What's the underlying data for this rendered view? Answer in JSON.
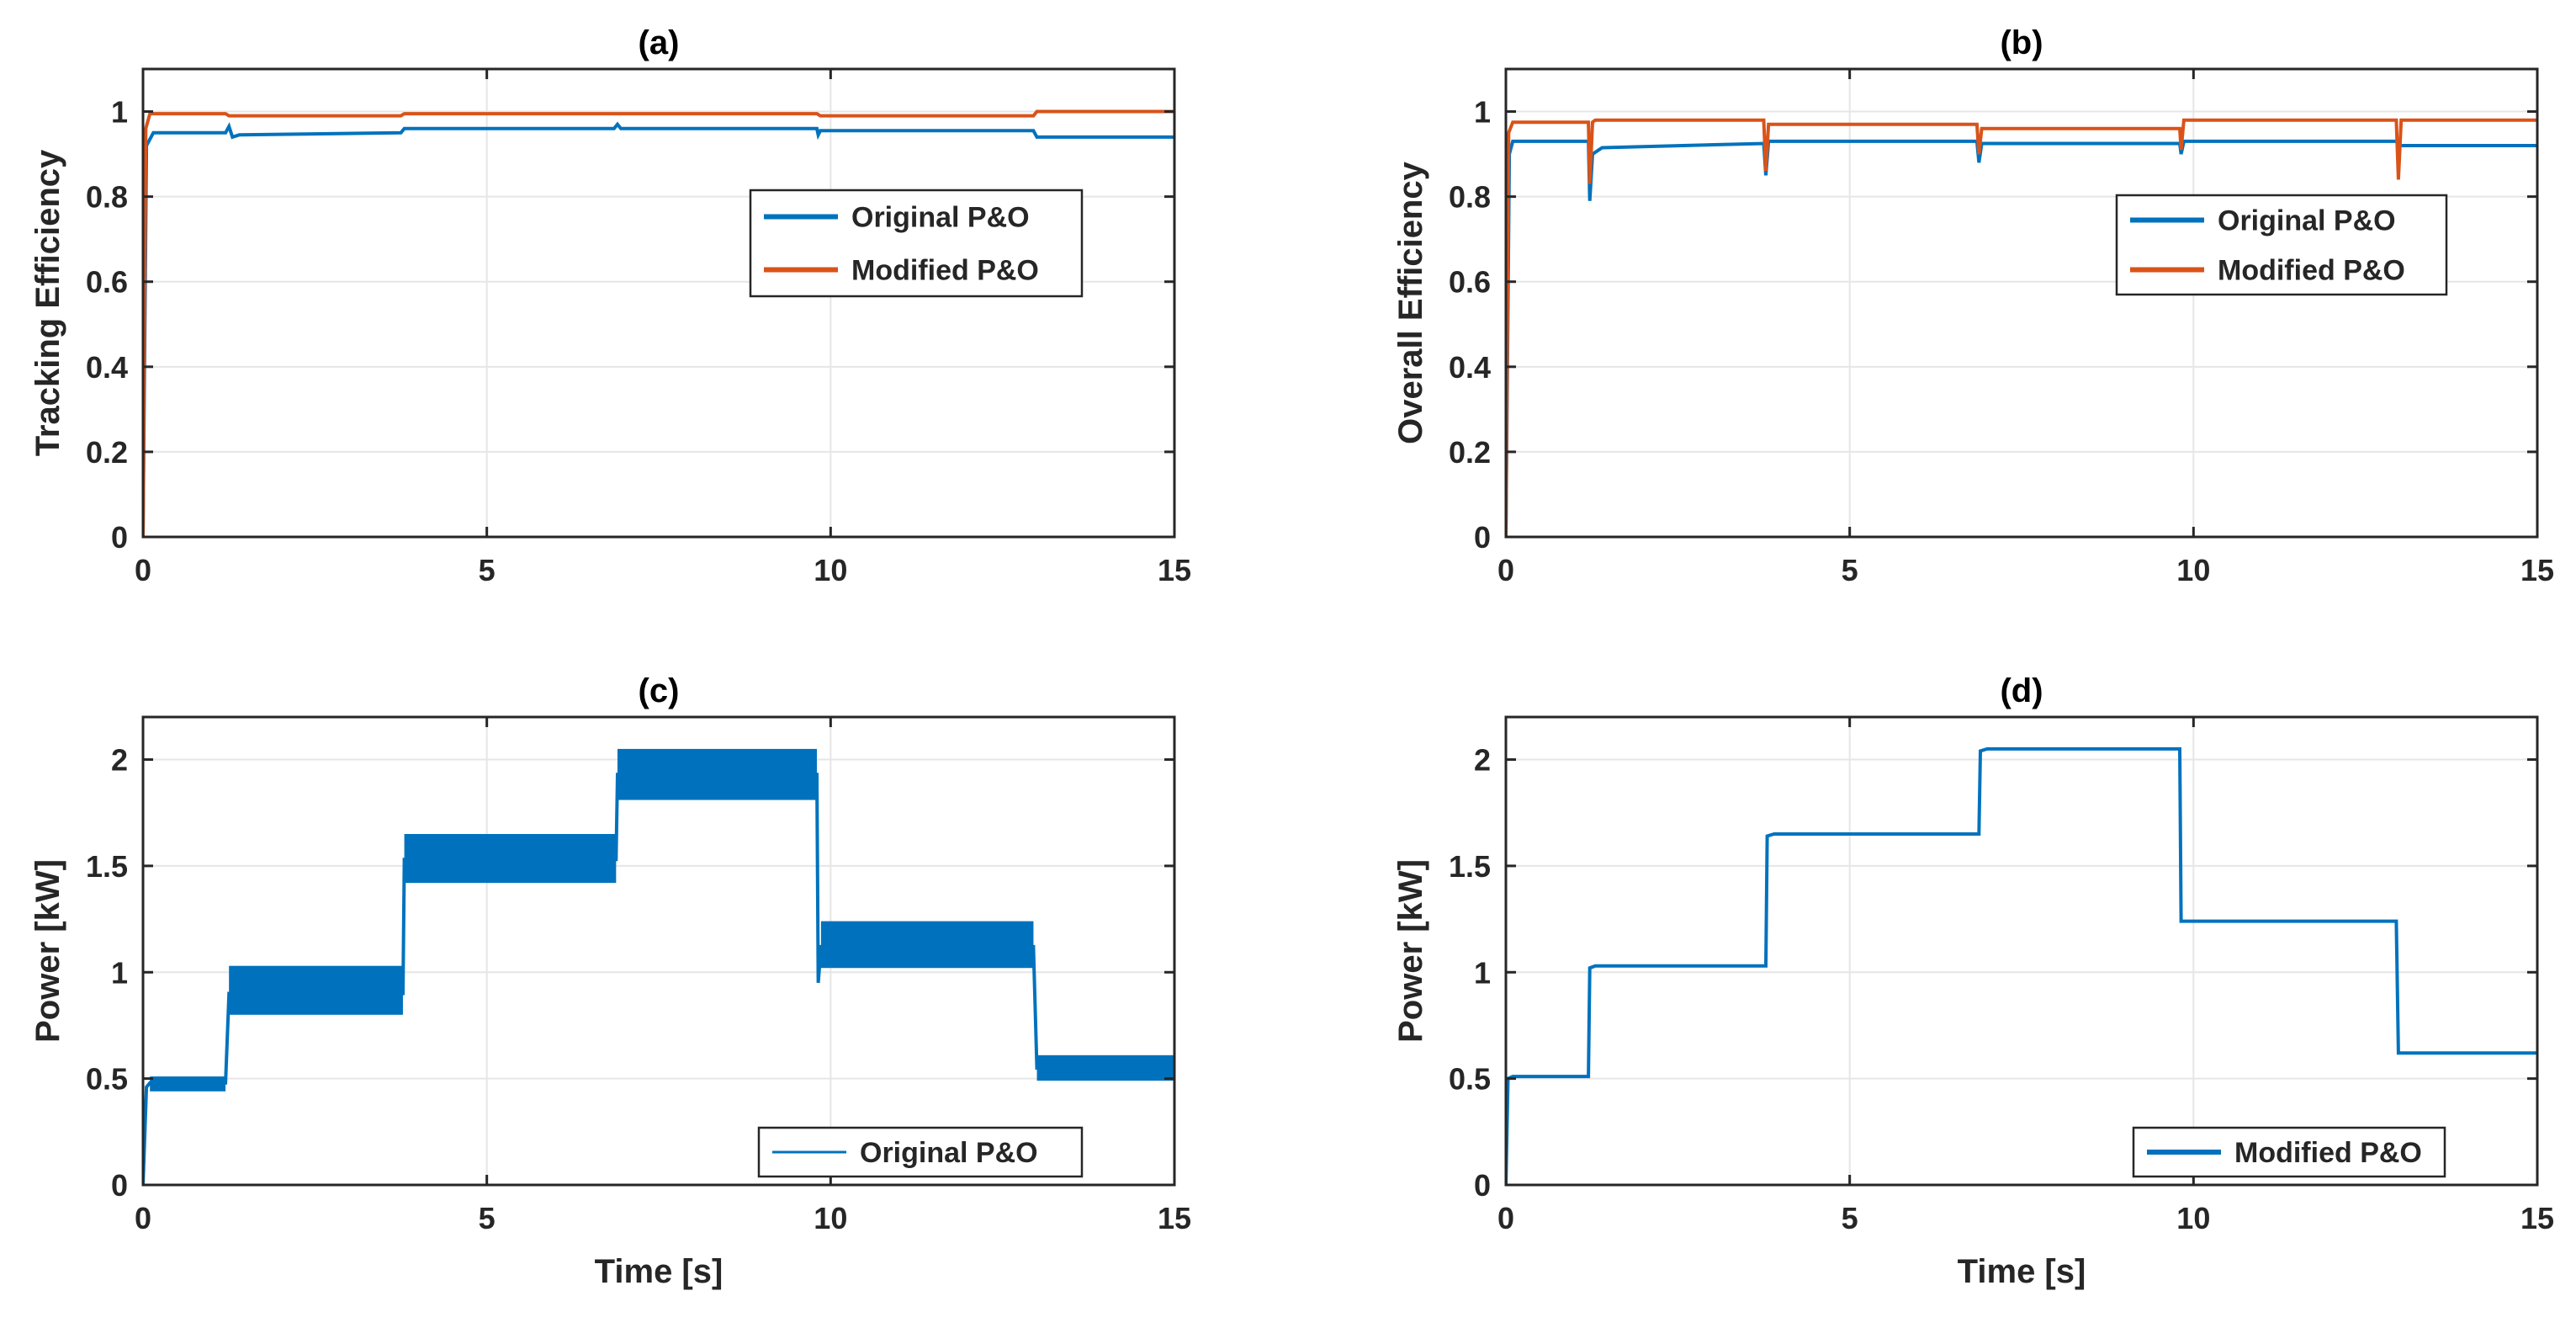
{
  "figure": {
    "background": "#ffffff"
  },
  "colors": {
    "blue": "#0072BD",
    "orange": "#D95319",
    "grid": "#e6e6e6",
    "axis": "#262626"
  },
  "chart_data": [
    {
      "id": "a",
      "type": "line",
      "title": "(a)",
      "xlabel": "",
      "ylabel": "Tracking Efficiency",
      "xlim": [
        0,
        15
      ],
      "ylim": [
        0,
        1.1
      ],
      "xticks": [
        0,
        5,
        10,
        15
      ],
      "yticks": [
        0,
        0.2,
        0.4,
        0.6,
        0.8,
        1
      ],
      "ytick_labels": [
        "0",
        "0.2",
        "0.4",
        "0.6",
        "0.8",
        "1"
      ],
      "grid": true,
      "legend": {
        "placement": "middle-right",
        "entries": [
          "Original P&O",
          "Modified P&O"
        ]
      },
      "series": [
        {
          "name": "Original P&O",
          "color": "#0072BD",
          "band": 0.008,
          "points": [
            [
              0,
              0
            ],
            [
              0.05,
              0.92
            ],
            [
              0.15,
              0.95
            ],
            [
              1.2,
              0.95
            ],
            [
              1.25,
              0.965
            ],
            [
              1.3,
              0.94
            ],
            [
              1.4,
              0.945
            ],
            [
              3.75,
              0.95
            ],
            [
              3.8,
              0.96
            ],
            [
              6.85,
              0.96
            ],
            [
              6.9,
              0.97
            ],
            [
              6.95,
              0.96
            ],
            [
              9.8,
              0.96
            ],
            [
              9.82,
              0.945
            ],
            [
              9.85,
              0.955
            ],
            [
              12.95,
              0.955
            ],
            [
              13.0,
              0.94
            ],
            [
              15,
              0.94
            ]
          ]
        },
        {
          "name": "Modified P&O",
          "color": "#D95319",
          "band": 0.003,
          "points": [
            [
              0,
              0
            ],
            [
              0.04,
              0.96
            ],
            [
              0.1,
              0.995
            ],
            [
              1.2,
              0.995
            ],
            [
              1.25,
              0.99
            ],
            [
              3.75,
              0.99
            ],
            [
              3.8,
              0.995
            ],
            [
              9.8,
              0.995
            ],
            [
              9.85,
              0.99
            ],
            [
              12.95,
              0.99
            ],
            [
              13.0,
              1.0
            ],
            [
              15,
              1.0
            ]
          ]
        }
      ]
    },
    {
      "id": "b",
      "type": "line",
      "title": "(b)",
      "xlabel": "",
      "ylabel": "Overall Efficiency",
      "xlim": [
        0,
        15
      ],
      "ylim": [
        0,
        1.1
      ],
      "xticks": [
        0,
        5,
        10,
        15
      ],
      "yticks": [
        0,
        0.2,
        0.4,
        0.6,
        0.8,
        1
      ],
      "ytick_labels": [
        "0",
        "0.2",
        "0.4",
        "0.6",
        "0.8",
        "1"
      ],
      "grid": true,
      "legend": {
        "placement": "middle-right",
        "entries": [
          "Original P&O",
          "Modified P&O"
        ]
      },
      "series": [
        {
          "name": "Original P&O",
          "color": "#0072BD",
          "band": 0.008,
          "points": [
            [
              0,
              0
            ],
            [
              0.05,
              0.9
            ],
            [
              0.1,
              0.93
            ],
            [
              1.2,
              0.93
            ],
            [
              1.22,
              0.79
            ],
            [
              1.26,
              0.9
            ],
            [
              1.4,
              0.915
            ],
            [
              3.75,
              0.925
            ],
            [
              3.78,
              0.85
            ],
            [
              3.82,
              0.93
            ],
            [
              6.85,
              0.93
            ],
            [
              6.88,
              0.88
            ],
            [
              6.92,
              0.925
            ],
            [
              9.8,
              0.925
            ],
            [
              9.82,
              0.9
            ],
            [
              9.86,
              0.93
            ],
            [
              12.95,
              0.93
            ],
            [
              12.98,
              0.92
            ],
            [
              15,
              0.92
            ]
          ]
        },
        {
          "name": "Modified P&O",
          "color": "#D95319",
          "band": 0.003,
          "points": [
            [
              0,
              0
            ],
            [
              0.04,
              0.95
            ],
            [
              0.1,
              0.975
            ],
            [
              1.2,
              0.975
            ],
            [
              1.22,
              0.83
            ],
            [
              1.26,
              0.975
            ],
            [
              1.3,
              0.98
            ],
            [
              3.75,
              0.98
            ],
            [
              3.78,
              0.86
            ],
            [
              3.82,
              0.97
            ],
            [
              6.85,
              0.97
            ],
            [
              6.88,
              0.9
            ],
            [
              6.92,
              0.96
            ],
            [
              9.8,
              0.96
            ],
            [
              9.82,
              0.91
            ],
            [
              9.86,
              0.98
            ],
            [
              12.95,
              0.98
            ],
            [
              12.98,
              0.84
            ],
            [
              13.02,
              0.98
            ],
            [
              15,
              0.98
            ]
          ]
        }
      ]
    },
    {
      "id": "c",
      "type": "line",
      "title": "(c)",
      "xlabel": "Time [s]",
      "ylabel": "Power [kW]",
      "xlim": [
        0,
        15
      ],
      "ylim": [
        0,
        2.2
      ],
      "xticks": [
        0,
        5,
        10,
        15
      ],
      "yticks": [
        0,
        0.5,
        1,
        1.5,
        2
      ],
      "ytick_labels": [
        "0",
        "0.5",
        "1",
        "1.5",
        "2"
      ],
      "grid": true,
      "legend": {
        "placement": "bottom-right",
        "entries": [
          "Original P&O"
        ]
      },
      "series": [
        {
          "name": "Original P&O",
          "color": "#0072BD",
          "oscillation_bands": [
            {
              "t": [
                0.1,
                1.2
              ],
              "low": 0.44,
              "high": 0.51
            },
            {
              "t": [
                1.25,
                3.78
              ],
              "low": 0.8,
              "high": 1.03
            },
            {
              "t": [
                3.8,
                6.88
              ],
              "low": 1.42,
              "high": 1.65
            },
            {
              "t": [
                6.9,
                9.8
              ],
              "low": 1.81,
              "high": 2.05
            },
            {
              "t": [
                9.86,
                12.95
              ],
              "low": 1.02,
              "high": 1.24
            },
            {
              "t": [
                13.0,
                15.0
              ],
              "low": 0.49,
              "high": 0.61
            }
          ],
          "points": [
            [
              0,
              0
            ],
            [
              0.05,
              0.46
            ],
            [
              0.1,
              0.48
            ],
            [
              1.2,
              0.48
            ],
            [
              1.25,
              0.9
            ],
            [
              3.78,
              0.9
            ],
            [
              3.8,
              1.53
            ],
            [
              6.88,
              1.53
            ],
            [
              6.9,
              1.93
            ],
            [
              9.8,
              1.93
            ],
            [
              9.82,
              0.95
            ],
            [
              9.86,
              1.12
            ],
            [
              12.95,
              1.12
            ],
            [
              13.0,
              0.55
            ],
            [
              15,
              0.55
            ]
          ]
        }
      ]
    },
    {
      "id": "d",
      "type": "line",
      "title": "(d)",
      "xlabel": "Time [s]",
      "ylabel": "Power [kW]",
      "xlim": [
        0,
        15
      ],
      "ylim": [
        0,
        2.2
      ],
      "xticks": [
        0,
        5,
        10,
        15
      ],
      "yticks": [
        0,
        0.5,
        1,
        1.5,
        2
      ],
      "ytick_labels": [
        "0",
        "0.5",
        "1",
        "1.5",
        "2"
      ],
      "grid": true,
      "legend": {
        "placement": "bottom-right",
        "entries": [
          "Modified P&O"
        ]
      },
      "series": [
        {
          "name": "Modified P&O",
          "color": "#0072BD",
          "band": 0.008,
          "points": [
            [
              0,
              0
            ],
            [
              0.03,
              0.5
            ],
            [
              0.1,
              0.51
            ],
            [
              1.2,
              0.51
            ],
            [
              1.22,
              1.02
            ],
            [
              1.3,
              1.03
            ],
            [
              3.78,
              1.03
            ],
            [
              3.8,
              1.64
            ],
            [
              3.9,
              1.65
            ],
            [
              6.88,
              1.65
            ],
            [
              6.9,
              2.04
            ],
            [
              7.0,
              2.05
            ],
            [
              9.8,
              2.05
            ],
            [
              9.82,
              1.24
            ],
            [
              12.95,
              1.24
            ],
            [
              12.98,
              0.62
            ],
            [
              15,
              0.62
            ]
          ]
        }
      ]
    }
  ]
}
